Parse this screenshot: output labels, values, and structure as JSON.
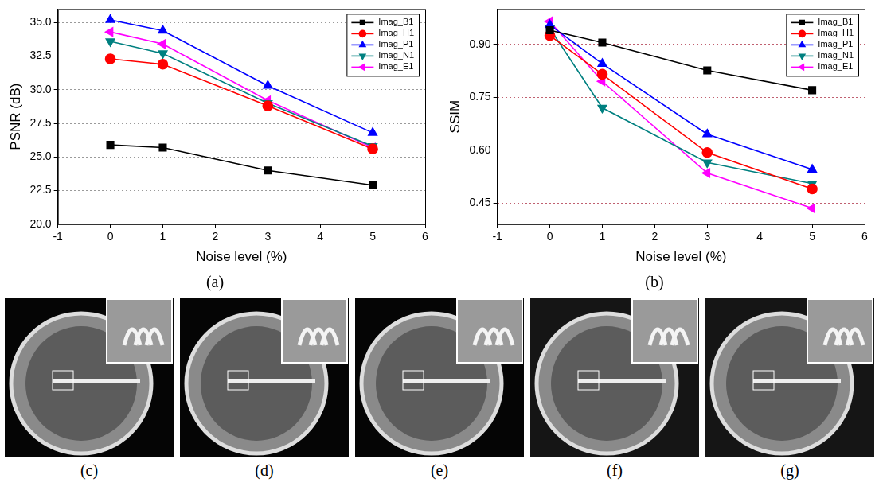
{
  "chart_data": [
    {
      "type": "line",
      "title": "(a)",
      "x_label": "Noise level (%)",
      "y_label": "PSNR (dB)",
      "x": [
        0,
        1,
        3,
        5
      ],
      "xlim": [
        -1,
        6
      ],
      "xticks": [
        -1,
        0,
        1,
        2,
        3,
        4,
        5,
        6
      ],
      "ylim": [
        20,
        36
      ],
      "yticks": [
        {
          "value": 20,
          "label": "20.0"
        },
        {
          "value": 22.5,
          "label": "22.5"
        },
        {
          "value": 25,
          "label": "25.0"
        },
        {
          "value": 27.5,
          "label": "27.5"
        },
        {
          "value": 30,
          "label": "30.0"
        },
        {
          "value": 32.5,
          "label": "32.5"
        },
        {
          "value": 35,
          "label": "35.0"
        }
      ],
      "grid": true,
      "legend": "upper right",
      "series": [
        {
          "name": "Imag_B1",
          "color": "#000000",
          "marker": "square",
          "values": [
            25.9,
            25.7,
            24.0,
            22.9
          ]
        },
        {
          "name": "Imag_H1",
          "color": "#ff0000",
          "marker": "circle",
          "values": [
            32.3,
            31.9,
            28.8,
            25.6
          ]
        },
        {
          "name": "Imag_P1",
          "color": "#0000ff",
          "marker": "triangle",
          "values": [
            35.2,
            34.4,
            30.3,
            26.8
          ]
        },
        {
          "name": "Imag_N1",
          "color": "#008080",
          "marker": "triangle-down",
          "values": [
            33.6,
            32.7,
            29.0,
            25.8
          ]
        },
        {
          "name": "Imag_E1",
          "color": "#ff00ff",
          "marker": "triangle-left",
          "values": [
            34.3,
            33.4,
            29.2,
            25.7
          ]
        }
      ]
    },
    {
      "type": "line",
      "title": "(b)",
      "x_label": "Noise level (%)",
      "y_label": "SSIM",
      "x": [
        0,
        1,
        3,
        5
      ],
      "xlim": [
        -1,
        6
      ],
      "xticks": [
        -1,
        0,
        1,
        2,
        3,
        4,
        5,
        6
      ],
      "ylim": [
        0.39,
        1.0
      ],
      "yticks": [
        0.45,
        {
          "value": 0.6,
          "label": "0.60"
        },
        0.75,
        {
          "value": 0.9,
          "label": "0.90"
        }
      ],
      "grid": true,
      "legend": "upper right",
      "series": [
        {
          "name": "Imag_B1",
          "color": "#000000",
          "marker": "square",
          "values": [
            0.94,
            0.905,
            0.826,
            0.77
          ]
        },
        {
          "name": "Imag_H1",
          "color": "#ff0000",
          "marker": "circle",
          "values": [
            0.925,
            0.815,
            0.593,
            0.49
          ]
        },
        {
          "name": "Imag_P1",
          "color": "#0000ff",
          "marker": "triangle",
          "values": [
            0.955,
            0.845,
            0.645,
            0.545
          ]
        },
        {
          "name": "Imag_N1",
          "color": "#008080",
          "marker": "triangle-down",
          "values": [
            0.945,
            0.72,
            0.565,
            0.505
          ]
        },
        {
          "name": "Imag_E1",
          "color": "#ff00ff",
          "marker": "triangle-left",
          "values": [
            0.965,
            0.795,
            0.535,
            0.435
          ]
        }
      ]
    }
  ],
  "images": {
    "labels": [
      "(c)",
      "(d)",
      "(e)",
      "(f)",
      "(g)"
    ]
  }
}
